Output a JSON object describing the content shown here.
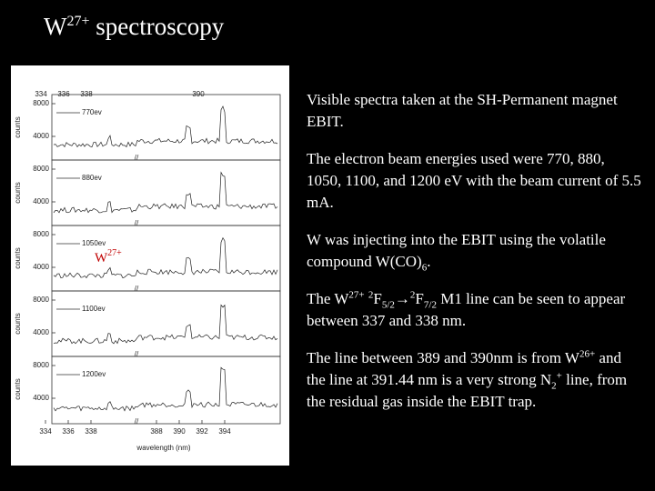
{
  "title": {
    "base": "W",
    "sup": "27+",
    "rest": " spectroscopy"
  },
  "figure": {
    "top_axis_labels": [
      "334",
      "336",
      "338",
      "390"
    ],
    "bottom_axis_labels": [
      "334",
      "336",
      "338",
      "388",
      "390",
      "392",
      "394"
    ],
    "x_axis_label": "wavelength (nm)",
    "y_axis_label": "counts",
    "panels": [
      {
        "label": "770ev",
        "yticks": [
          "8000",
          "4000"
        ]
      },
      {
        "label": "880ev",
        "yticks": [
          "8000",
          "4000"
        ]
      },
      {
        "label": "1050ev",
        "yticks": [
          "8000",
          "4000"
        ]
      },
      {
        "label": "1100ev",
        "yticks": [
          "8000",
          "4000"
        ]
      },
      {
        "label": "1200ev",
        "yticks": [
          "8000",
          "4000"
        ]
      }
    ],
    "overlay": {
      "base": "W",
      "sup": "27+"
    }
  },
  "paragraphs": [
    [
      "Visible spectra taken at the SH-Permanent magnet EBIT."
    ],
    [
      "The electron beam energies used were  770, 880, 1050, 1100, and 1200 eV with the beam current of 5.5 mA."
    ],
    [
      "W was injecting into the EBIT using the volatile compound W(CO)",
      "6",
      "."
    ],
    [
      "The W",
      "27+",
      " ",
      "2",
      "F",
      "5/2",
      "→",
      "2",
      "F",
      "7/2",
      " M1 line can be seen to appear between 337 and 338 nm."
    ],
    [
      "The line between 389 and 390nm is from W",
      "26+",
      " and the line at 391.44 nm is a very strong N",
      "2",
      "+",
      " line, from the residual gas inside the EBIT trap."
    ]
  ]
}
